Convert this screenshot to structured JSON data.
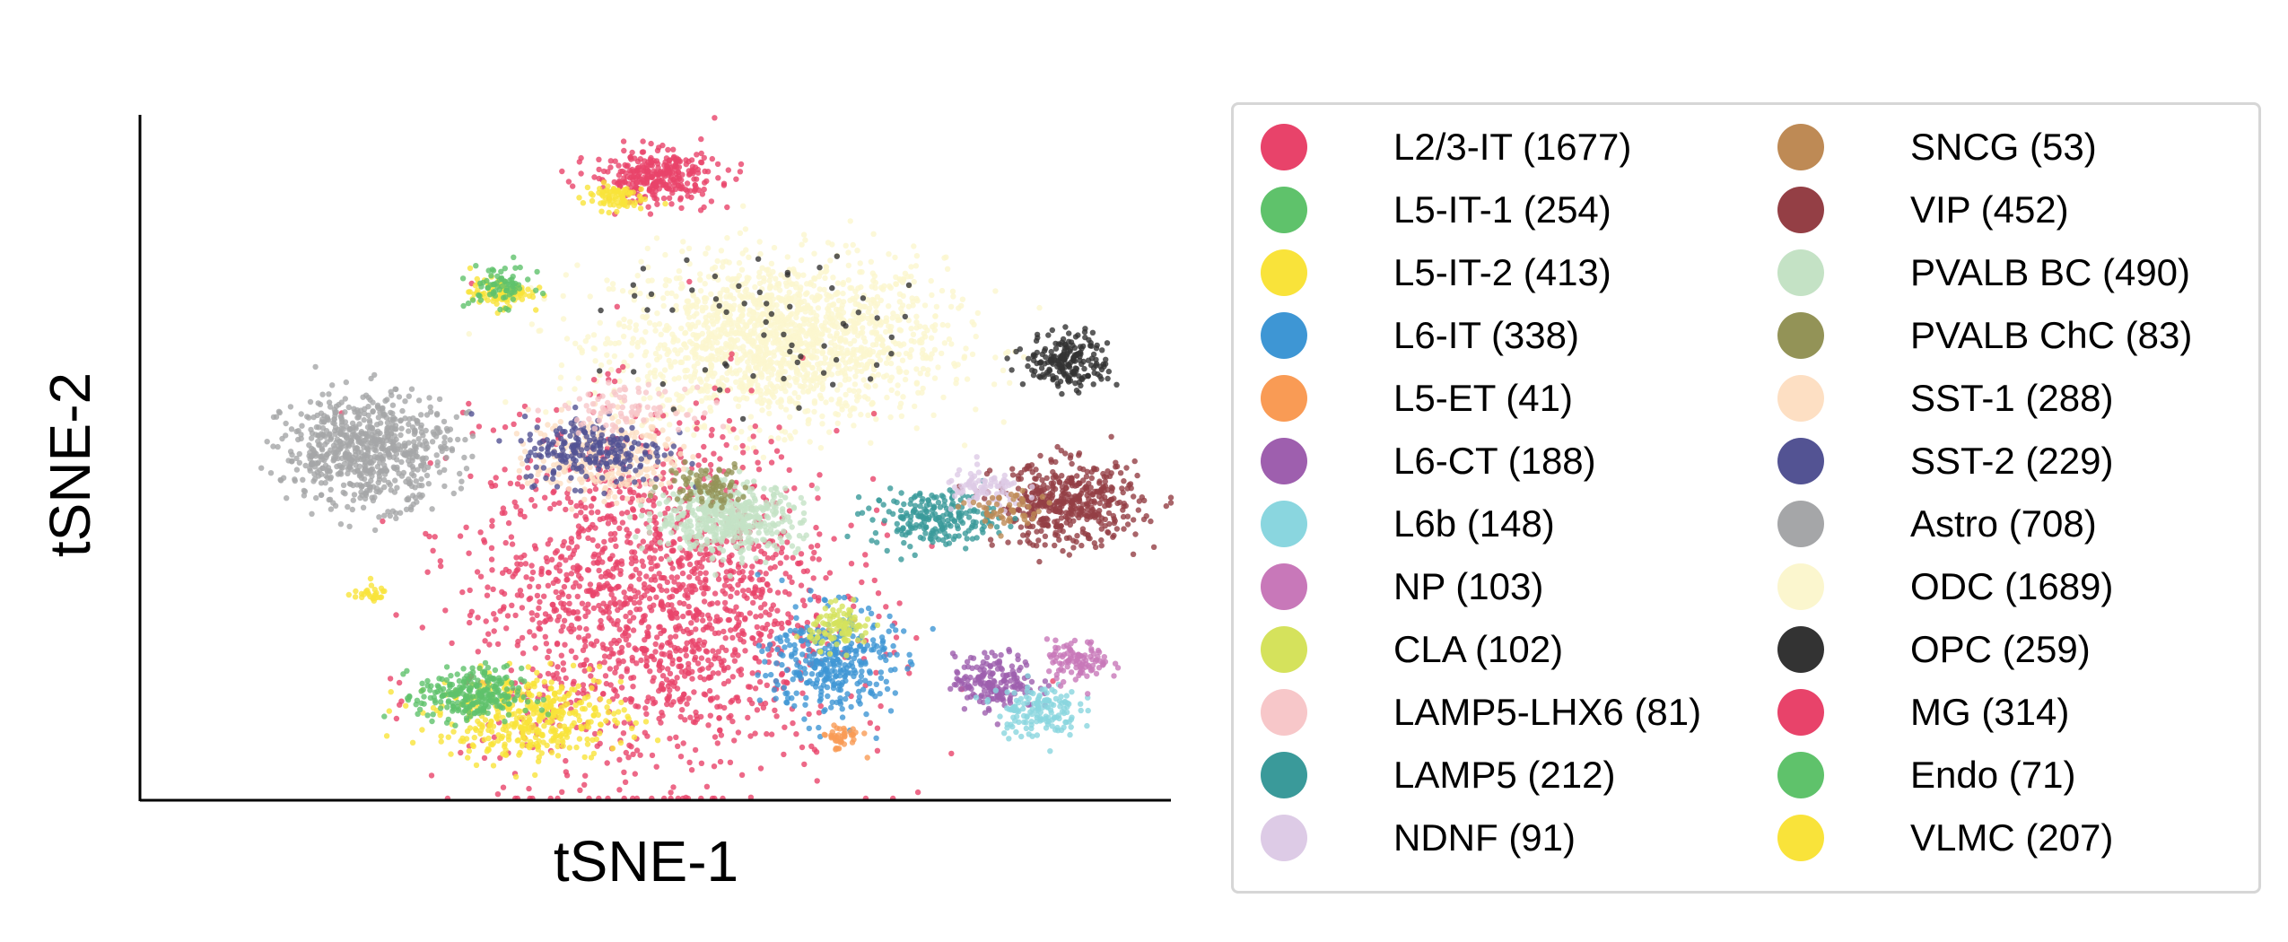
{
  "chart_data": {
    "type": "scatter",
    "title": "",
    "xlabel": "tSNE-1",
    "ylabel": "tSNE-2",
    "xlim": [
      0,
      100
    ],
    "ylim": [
      0,
      100
    ],
    "grid": false,
    "axes": {
      "ticks": false,
      "spines": [
        "left",
        "bottom"
      ]
    },
    "legend": {
      "placement": "right, outside plot, 2 columns, framed"
    },
    "series": [
      {
        "name": "L2/3-IT (1677)",
        "color": "#E8436A",
        "clusters": [
          [
            50,
            29,
            9,
            13,
            1677
          ]
        ]
      },
      {
        "name": "L5-IT-1 (254)",
        "color": "#5FC26B",
        "clusters": [
          [
            32,
            15,
            2.5,
            2,
            254
          ]
        ]
      },
      {
        "name": "L5-IT-2 (413)",
        "color": "#F9E33A",
        "clusters": [
          [
            38,
            12,
            4.5,
            3,
            413
          ]
        ]
      },
      {
        "name": "L6-IT (338)",
        "color": "#3E96D4",
        "clusters": [
          [
            67,
            20,
            3,
            4,
            338
          ]
        ]
      },
      {
        "name": "L5-ET (41)",
        "color": "#F99B55",
        "clusters": [
          [
            68,
            9,
            1,
            1,
            41
          ]
        ]
      },
      {
        "name": "L6-CT (188)",
        "color": "#9E5FAE",
        "clusters": [
          [
            83,
            17,
            2,
            2,
            188
          ]
        ]
      },
      {
        "name": "L6b (148)",
        "color": "#8AD6DF",
        "clusters": [
          [
            87,
            13,
            2,
            2,
            148
          ]
        ]
      },
      {
        "name": "NP (103)",
        "color": "#C878B9",
        "clusters": [
          [
            91,
            20,
            1.5,
            1.5,
            103
          ]
        ]
      },
      {
        "name": "CLA (102)",
        "color": "#D5E25C",
        "clusters": [
          [
            68,
            25,
            1.5,
            1.5,
            102
          ]
        ]
      },
      {
        "name": "LAMP5-LHX6 (81)",
        "color": "#F7C7C9",
        "clusters": [
          [
            47,
            57,
            3,
            1.5,
            81
          ]
        ]
      },
      {
        "name": "LAMP5 (212)",
        "color": "#3A9A9A",
        "clusters": [
          [
            77,
            41,
            3,
            2,
            212
          ]
        ]
      },
      {
        "name": "NDNF (91)",
        "color": "#DDCBE6",
        "clusters": [
          [
            82,
            45,
            2,
            1.5,
            91
          ]
        ]
      },
      {
        "name": "SNCG (53)",
        "color": "#BE8A55",
        "clusters": [
          [
            84,
            42,
            2,
            1.5,
            53
          ]
        ]
      },
      {
        "name": "VIP (452)",
        "color": "#943F45",
        "clusters": [
          [
            90,
            43,
            3.5,
            3,
            452
          ]
        ]
      },
      {
        "name": "PVALB BC (490)",
        "color": "#C4E2C5",
        "clusters": [
          [
            57,
            41,
            3.5,
            2.5,
            490
          ]
        ]
      },
      {
        "name": "PVALB ChC (83)",
        "color": "#939357",
        "clusters": [
          [
            55,
            46,
            2,
            1.5,
            83
          ]
        ]
      },
      {
        "name": "SST-1 (288)",
        "color": "#FDDFC3",
        "clusters": [
          [
            45,
            50,
            3.5,
            3,
            288
          ]
        ]
      },
      {
        "name": "SST-2 (229)",
        "color": "#535393",
        "clusters": [
          [
            44,
            51,
            3.5,
            2.5,
            229
          ]
        ]
      },
      {
        "name": "Astro (708)",
        "color": "#A5A6A8",
        "clusters": [
          [
            22,
            51,
            4,
            4,
            708
          ]
        ]
      },
      {
        "name": "ODC (1689)",
        "color": "#FBF6CE",
        "clusters": [
          [
            62,
            67,
            8,
            6,
            1689
          ]
        ]
      },
      {
        "name": "OPC (259)",
        "color": "#333333",
        "clusters": [
          [
            90,
            64,
            2,
            2,
            200
          ],
          [
            62,
            68,
            8,
            6,
            59
          ]
        ]
      },
      {
        "name": "MG (314)",
        "color": "#E8436A",
        "clusters": [
          [
            50,
            91,
            3,
            2,
            314
          ]
        ]
      },
      {
        "name": "Endo (71)",
        "color": "#5FC26B",
        "clusters": [
          [
            35,
            75,
            1.5,
            1.5,
            71
          ]
        ]
      },
      {
        "name": "VLMC (207)",
        "color": "#F9E33A",
        "clusters": [
          [
            35,
            74,
            1.5,
            1,
            100
          ],
          [
            46,
            88,
            1.5,
            1,
            80
          ],
          [
            22,
            30,
            1,
            0.6,
            27
          ]
        ]
      }
    ],
    "cluster_format": [
      "x_center",
      "y_center",
      "x_spread",
      "y_spread",
      "n_points"
    ]
  }
}
